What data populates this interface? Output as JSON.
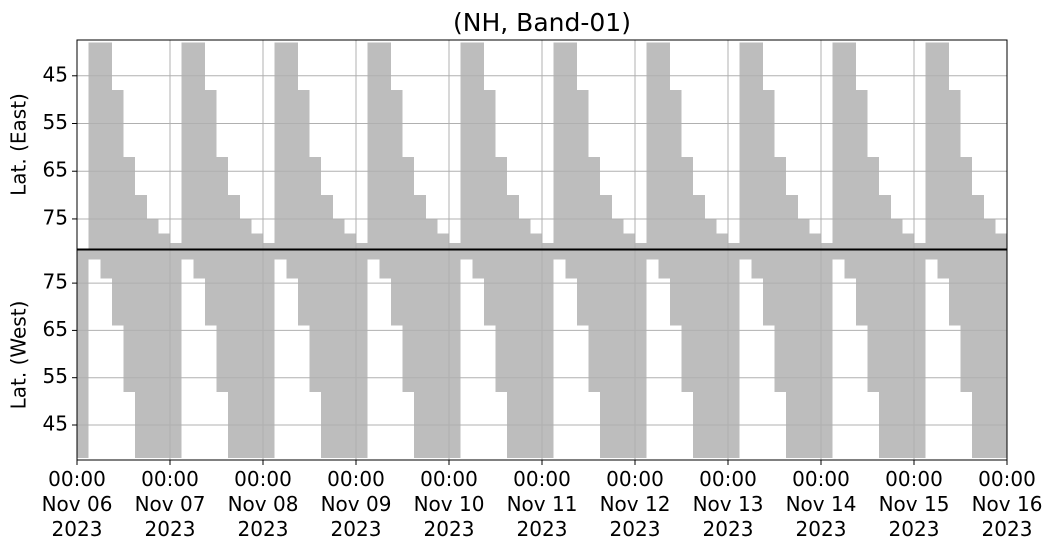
{
  "chart_data": [
    {
      "type": "bar",
      "title": "(NH, Band-01)",
      "y_label": "Lat. (East)",
      "color": "#bdbdbd",
      "grid": true,
      "xlim": [
        "2023-11-06T00:00",
        "2023-11-16T00:00"
      ],
      "ylim": [
        37.5,
        81.3
      ],
      "yticks": [
        45,
        55,
        65,
        75
      ],
      "x": [
        "2023-11-06T00:00",
        "2023-11-06T03:00",
        "2023-11-06T06:00",
        "2023-11-06T09:00",
        "2023-11-06T12:00",
        "2023-11-06T15:00",
        "2023-11-06T18:00",
        "2023-11-06T21:00",
        "2023-11-07T00:00",
        "2023-11-07T03:00",
        "2023-11-07T06:00",
        "2023-11-07T09:00",
        "2023-11-07T12:00",
        "2023-11-07T15:00",
        "2023-11-07T18:00",
        "2023-11-07T21:00",
        "2023-11-08T00:00",
        "2023-11-08T03:00",
        "2023-11-08T06:00",
        "2023-11-08T09:00",
        "2023-11-08T12:00",
        "2023-11-08T15:00",
        "2023-11-08T18:00",
        "2023-11-08T21:00",
        "2023-11-09T00:00",
        "2023-11-09T03:00",
        "2023-11-09T06:00",
        "2023-11-09T09:00",
        "2023-11-09T12:00",
        "2023-11-09T15:00",
        "2023-11-09T18:00",
        "2023-11-09T21:00",
        "2023-11-10T00:00",
        "2023-11-10T03:00",
        "2023-11-10T06:00",
        "2023-11-10T09:00",
        "2023-11-10T12:00",
        "2023-11-10T15:00",
        "2023-11-10T18:00",
        "2023-11-10T21:00",
        "2023-11-11T00:00",
        "2023-11-11T03:00",
        "2023-11-11T06:00",
        "2023-11-11T09:00",
        "2023-11-11T12:00",
        "2023-11-11T15:00",
        "2023-11-11T18:00",
        "2023-11-11T21:00",
        "2023-11-12T00:00",
        "2023-11-12T03:00",
        "2023-11-12T06:00",
        "2023-11-12T09:00",
        "2023-11-12T12:00",
        "2023-11-12T15:00",
        "2023-11-12T18:00",
        "2023-11-12T21:00",
        "2023-11-13T00:00",
        "2023-11-13T03:00",
        "2023-11-13T06:00",
        "2023-11-13T09:00",
        "2023-11-13T12:00",
        "2023-11-13T15:00",
        "2023-11-13T18:00",
        "2023-11-13T21:00",
        "2023-11-14T00:00",
        "2023-11-14T03:00",
        "2023-11-14T06:00",
        "2023-11-14T09:00",
        "2023-11-14T12:00",
        "2023-11-14T15:00",
        "2023-11-14T18:00",
        "2023-11-14T21:00",
        "2023-11-15T00:00",
        "2023-11-15T03:00",
        "2023-11-15T06:00",
        "2023-11-15T09:00",
        "2023-11-15T12:00",
        "2023-11-15T15:00",
        "2023-11-15T18:00",
        "2023-11-15T21:00"
      ],
      "values": [
        null,
        38,
        38,
        48,
        62,
        70,
        75,
        78,
        80,
        38,
        38,
        48,
        62,
        70,
        75,
        78,
        80,
        38,
        38,
        48,
        62,
        70,
        75,
        78,
        80,
        38,
        38,
        48,
        62,
        70,
        75,
        78,
        80,
        38,
        38,
        48,
        62,
        70,
        75,
        78,
        80,
        38,
        38,
        48,
        62,
        70,
        75,
        78,
        80,
        38,
        38,
        48,
        62,
        70,
        75,
        78,
        80,
        38,
        38,
        48,
        62,
        70,
        75,
        78,
        80,
        38,
        38,
        48,
        62,
        70,
        75,
        78,
        80,
        38,
        38,
        48,
        62,
        70,
        75,
        78
      ]
    },
    {
      "type": "bar",
      "y_label": "Lat. (West)",
      "color": "#bdbdbd",
      "grid": true,
      "xlim": [
        "2023-11-06T00:00",
        "2023-11-16T00:00"
      ],
      "xticks": [
        {
          "value": "2023-11-06T00:00",
          "label": "00:00\nNov 06\n2023"
        },
        {
          "value": "2023-11-07T00:00",
          "label": "00:00\nNov 07\n2023"
        },
        {
          "value": "2023-11-08T00:00",
          "label": "00:00\nNov 08\n2023"
        },
        {
          "value": "2023-11-09T00:00",
          "label": "00:00\nNov 09\n2023"
        },
        {
          "value": "2023-11-10T00:00",
          "label": "00:00\nNov 10\n2023"
        },
        {
          "value": "2023-11-11T00:00",
          "label": "00:00\nNov 11\n2023"
        },
        {
          "value": "2023-11-12T00:00",
          "label": "00:00\nNov 12\n2023"
        },
        {
          "value": "2023-11-13T00:00",
          "label": "00:00\nNov 13\n2023"
        },
        {
          "value": "2023-11-14T00:00",
          "label": "00:00\nNov 14\n2023"
        },
        {
          "value": "2023-11-15T00:00",
          "label": "00:00\nNov 15\n2023"
        },
        {
          "value": "2023-11-16T00:00",
          "label": "00:00\nNov 16\n2023"
        }
      ],
      "ylim": [
        82,
        37.6
      ],
      "yticks": [
        75,
        65,
        55,
        45
      ],
      "x": [
        "2023-11-06T00:00",
        "2023-11-06T03:00",
        "2023-11-06T06:00",
        "2023-11-06T09:00",
        "2023-11-06T12:00",
        "2023-11-06T15:00",
        "2023-11-06T18:00",
        "2023-11-06T21:00",
        "2023-11-07T00:00",
        "2023-11-07T03:00",
        "2023-11-07T06:00",
        "2023-11-07T09:00",
        "2023-11-07T12:00",
        "2023-11-07T15:00",
        "2023-11-07T18:00",
        "2023-11-07T21:00",
        "2023-11-08T00:00",
        "2023-11-08T03:00",
        "2023-11-08T06:00",
        "2023-11-08T09:00",
        "2023-11-08T12:00",
        "2023-11-08T15:00",
        "2023-11-08T18:00",
        "2023-11-08T21:00",
        "2023-11-09T00:00",
        "2023-11-09T03:00",
        "2023-11-09T06:00",
        "2023-11-09T09:00",
        "2023-11-09T12:00",
        "2023-11-09T15:00",
        "2023-11-09T18:00",
        "2023-11-09T21:00",
        "2023-11-10T00:00",
        "2023-11-10T03:00",
        "2023-11-10T06:00",
        "2023-11-10T09:00",
        "2023-11-10T12:00",
        "2023-11-10T15:00",
        "2023-11-10T18:00",
        "2023-11-10T21:00",
        "2023-11-11T00:00",
        "2023-11-11T03:00",
        "2023-11-11T06:00",
        "2023-11-11T09:00",
        "2023-11-11T12:00",
        "2023-11-11T15:00",
        "2023-11-11T18:00",
        "2023-11-11T21:00",
        "2023-11-12T00:00",
        "2023-11-12T03:00",
        "2023-11-12T06:00",
        "2023-11-12T09:00",
        "2023-11-12T12:00",
        "2023-11-12T15:00",
        "2023-11-12T18:00",
        "2023-11-12T21:00",
        "2023-11-13T00:00",
        "2023-11-13T03:00",
        "2023-11-13T06:00",
        "2023-11-13T09:00",
        "2023-11-13T12:00",
        "2023-11-13T15:00",
        "2023-11-13T18:00",
        "2023-11-13T21:00",
        "2023-11-14T00:00",
        "2023-11-14T03:00",
        "2023-11-14T06:00",
        "2023-11-14T09:00",
        "2023-11-14T12:00",
        "2023-11-14T15:00",
        "2023-11-14T18:00",
        "2023-11-14T21:00",
        "2023-11-15T00:00",
        "2023-11-15T03:00",
        "2023-11-15T06:00",
        "2023-11-15T09:00",
        "2023-11-15T12:00",
        "2023-11-15T15:00",
        "2023-11-15T18:00",
        "2023-11-15T21:00"
      ],
      "values": [
        38,
        80,
        76,
        66,
        52,
        38,
        38,
        38,
        38,
        80,
        76,
        66,
        52,
        38,
        38,
        38,
        38,
        80,
        76,
        66,
        52,
        38,
        38,
        38,
        38,
        80,
        76,
        66,
        52,
        38,
        38,
        38,
        38,
        80,
        76,
        66,
        52,
        38,
        38,
        38,
        38,
        80,
        76,
        66,
        52,
        38,
        38,
        38,
        38,
        80,
        76,
        66,
        52,
        38,
        38,
        38,
        38,
        80,
        76,
        66,
        52,
        38,
        38,
        38,
        38,
        80,
        76,
        66,
        52,
        38,
        38,
        38,
        38,
        80,
        76,
        66,
        52,
        38,
        38,
        38
      ]
    }
  ]
}
